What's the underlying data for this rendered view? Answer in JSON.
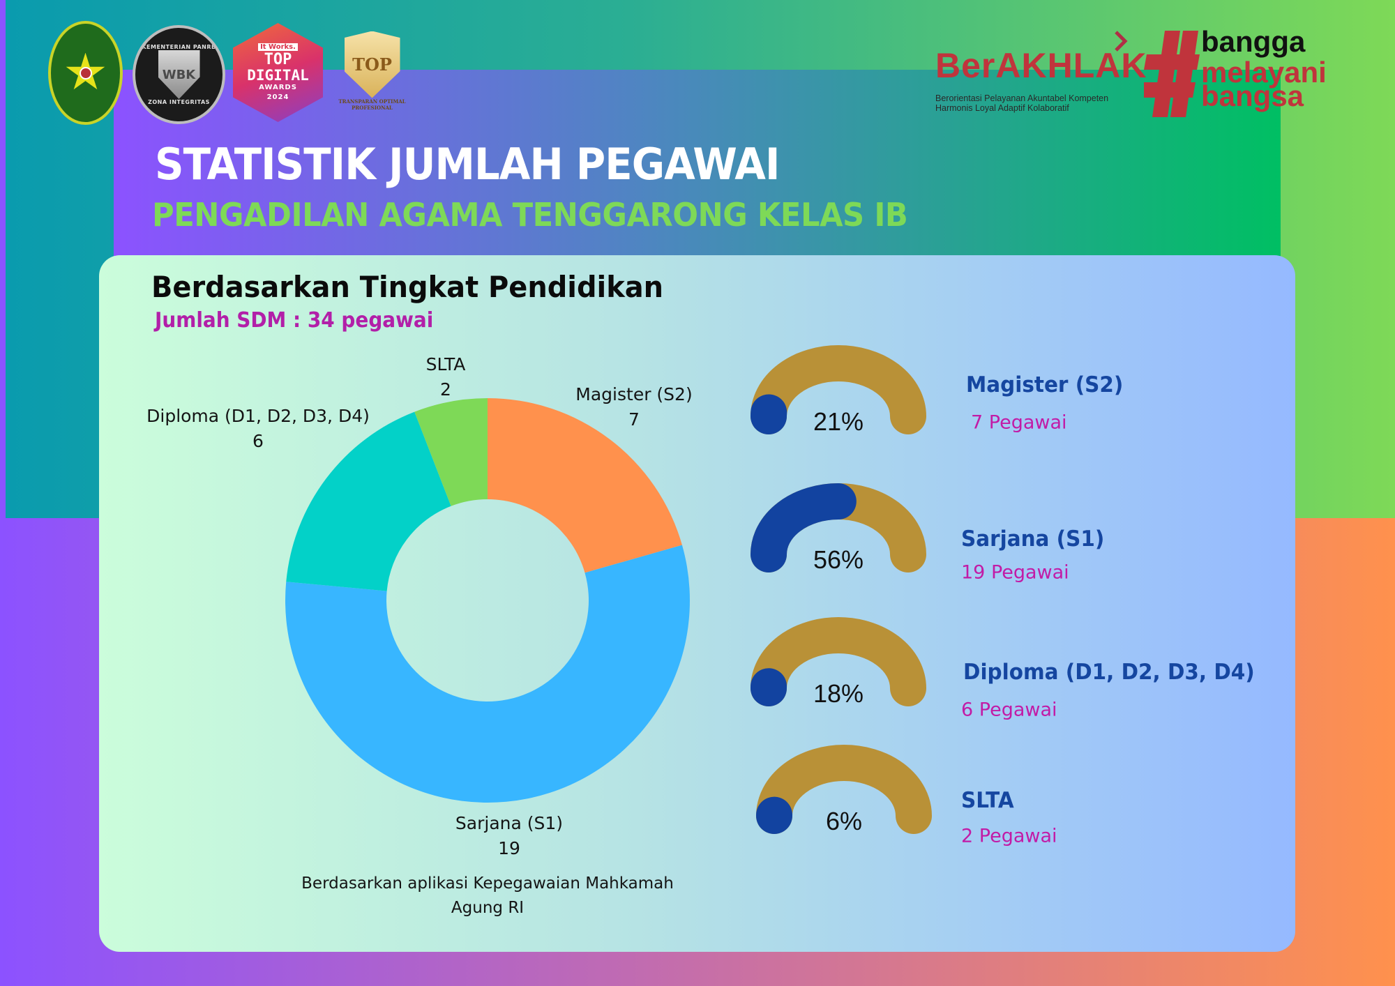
{
  "header": {
    "logos": [
      {
        "name": "Pengadilan Agama Tenggarong seal",
        "text": ""
      },
      {
        "name": "WBK Zona Integritas badge",
        "ring_top": "KEMENTERIAN PANRB",
        "center": "WBK",
        "ring_bottom": "ZONA INTEGRITAS"
      },
      {
        "name": "Top Digital Awards 2024 badge",
        "brand": "It Works.",
        "line1": "TOP",
        "line2": "DIGITAL",
        "line3": "AWARDS",
        "line4": "2024"
      },
      {
        "name": "TOP gold shield badge",
        "center": "TOP",
        "caption_line1": "TRANSPARAN OPTIMAL",
        "caption_line2": "PROFESIONAL"
      }
    ],
    "berakhlak": {
      "word": "BerAKHLAK",
      "tagline_line1": "Berorientasi Pelayanan Akuntabel Kompeten",
      "tagline_line2": "Harmonis Loyal Adaptif Kolaboratif"
    },
    "bangga": {
      "hash": "#",
      "line1": "bangga",
      "line2": "melayani",
      "line3": "bangsa"
    }
  },
  "title": {
    "main": "STATISTIK JUMLAH PEGAWAI",
    "sub": "PENGADILAN AGAMA TENGGARONG KELAS IB"
  },
  "section": {
    "title": "Berdasarkan Tingkat Pendidikan",
    "subtitle": "Jumlah SDM : 34 pegawai",
    "source_line1": "Berdasarkan aplikasi Kepegawaian Mahkamah",
    "source_line2": "Agung RI"
  },
  "colors": {
    "magister": "#FF914D",
    "sarjana": "#38B6FF",
    "diploma": "#03D1C8",
    "slta": "#7ED957",
    "gauge_track": "#B99137",
    "gauge_fill": "#1243A0",
    "gauge_label": "#1546A0",
    "gauge_count": "#C21BA6",
    "subtitle_magenta": "#B21FA8",
    "title_green": "#7ED957",
    "brand_red": "#C0343C"
  },
  "chart_data": {
    "type": "pie",
    "subtype": "donut",
    "title": "Berdasarkan Tingkat Pendidikan",
    "subtitle": "Jumlah SDM : 34 pegawai",
    "categories": [
      "Magister (S2)",
      "Sarjana (S1)",
      "Diploma (D1, D2, D3, D4)",
      "SLTA"
    ],
    "values": [
      7,
      19,
      6,
      2
    ],
    "total": 34,
    "colors": [
      "#FF914D",
      "#38B6FF",
      "#03D1C8",
      "#7ED957"
    ],
    "start_angle_deg": 0,
    "direction": "clockwise",
    "labels": [
      {
        "name": "Magister (S2)",
        "value": "7"
      },
      {
        "name": "Sarjana (S1)",
        "value": "19"
      },
      {
        "name": "Diploma (D1, D2, D3, D4)",
        "value": "6"
      },
      {
        "name": "SLTA",
        "value": "2"
      }
    ],
    "gauges": [
      {
        "label": "Magister (S2)",
        "percent": 21,
        "percent_text": "21%",
        "count_text": "7 Pegawai"
      },
      {
        "label": "Sarjana (S1)",
        "percent": 56,
        "percent_text": "56%",
        "count_text": "19 Pegawai"
      },
      {
        "label": "Diploma (D1, D2, D3, D4)",
        "percent": 18,
        "percent_text": "18%",
        "count_text": "6 Pegawai"
      },
      {
        "label": "SLTA",
        "percent": 6,
        "percent_text": "6%",
        "count_text": "2 Pegawai"
      }
    ],
    "source": "Berdasarkan aplikasi Kepegawaian Mahkamah Agung RI"
  },
  "gauges": [
    {
      "label": "Magister (S2)",
      "pct_text": "21%",
      "count": "7 Pegawai",
      "visual_fill": 2
    },
    {
      "label": "Sarjana (S1)",
      "pct_text": "56%",
      "count": "19 Pegawai",
      "visual_fill": 50
    },
    {
      "label": "Diploma (D1, D2, D3, D4)",
      "pct_text": "18%",
      "count": "6 Pegawai",
      "visual_fill": 1
    },
    {
      "label": "SLTA",
      "pct_text": "6%",
      "count": "2 Pegawai",
      "visual_fill": 0.5
    }
  ]
}
